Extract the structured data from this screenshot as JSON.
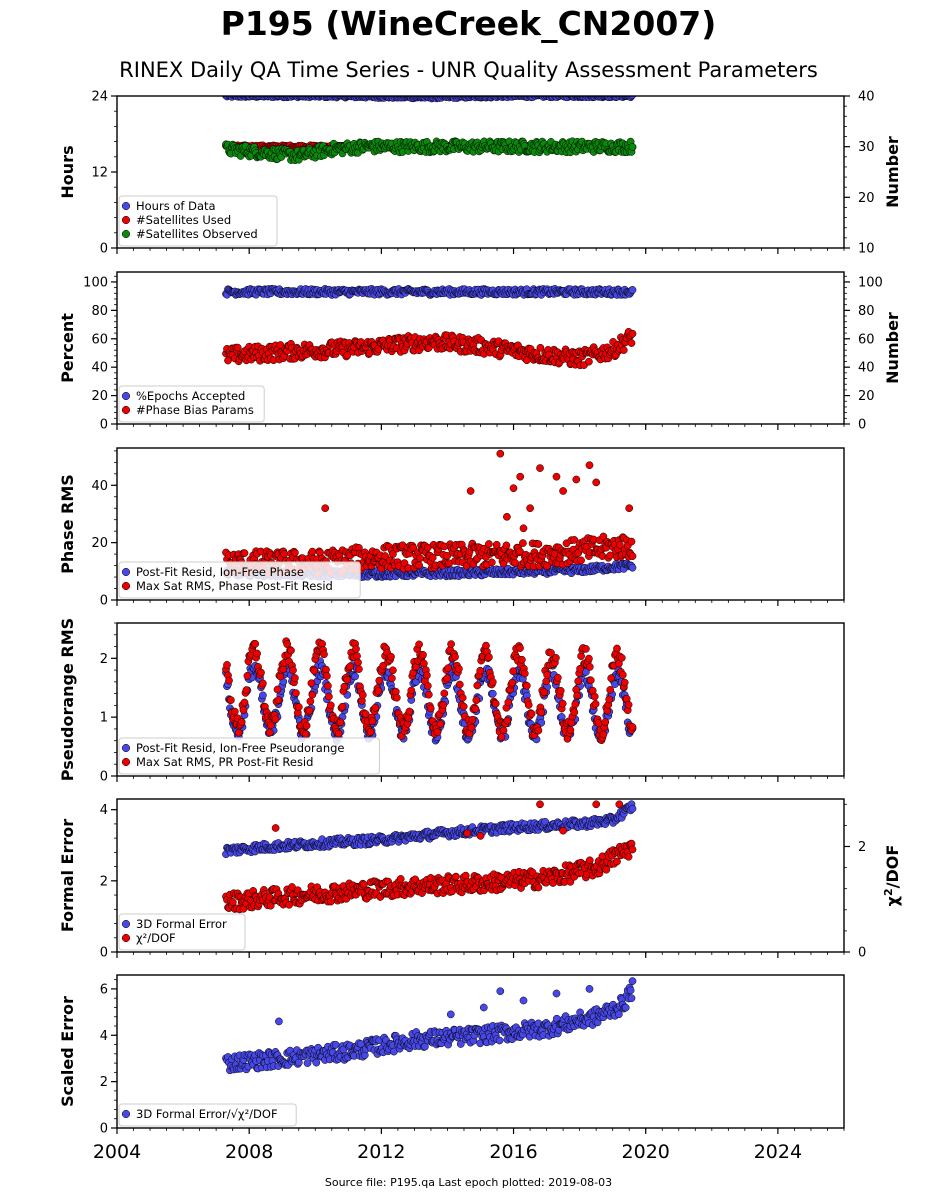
{
  "header": {
    "title": "P195 (WineCreek_CN2007)",
    "subtitle": "RINEX Daily QA Time Series - UNR Quality Assessment Parameters"
  },
  "footer": {
    "text": "Source file: P195.qa Last epoch plotted: 2019-08-03"
  },
  "colors": {
    "blue": "#4848e8",
    "red": "#ee0000",
    "green": "#0a8a0a",
    "outline": "#000000"
  },
  "chart_data": {
    "type": "scatter",
    "x_axis": {
      "range": [
        2004,
        2026
      ],
      "ticks": [
        2004,
        2008,
        2012,
        2016,
        2020,
        2024
      ],
      "tick_labels": [
        "2004",
        "2008",
        "2012",
        "2016",
        "2020",
        "2024"
      ]
    },
    "data_span": {
      "start": 2007.3,
      "end": 2019.6
    },
    "panels": [
      {
        "ylabel": "Hours",
        "ylim": [
          0,
          24
        ],
        "yticks": [
          0,
          12,
          24
        ],
        "ytick_labels": [
          "0",
          "12",
          "24"
        ],
        "right_axis": {
          "ylabel": "Number",
          "ylim": [
            10,
            40
          ],
          "yticks": [
            10,
            20,
            30,
            40
          ],
          "ytick_labels": [
            "10",
            "20",
            "30",
            "40"
          ]
        },
        "legend": {
          "position": "lower-left",
          "entries": [
            "Hours of Data",
            "#Satellites Used",
            "#Satellites Observed"
          ]
        },
        "series": [
          {
            "name": "Hours of Data",
            "color": "blue",
            "axis": "left",
            "points": [
              [
                2007.3,
                24
              ],
              [
                2010,
                24
              ],
              [
                2013.5,
                23.8
              ],
              [
                2016,
                24
              ],
              [
                2019.6,
                24
              ]
            ],
            "spread": 0.15
          },
          {
            "name": "#Satellites Used",
            "color": "red",
            "axis": "right",
            "points": [
              [
                2009.7,
                30
              ]
            ],
            "spread": 0.2
          },
          {
            "name": "#Satellites Observed",
            "color": "green",
            "axis": "right",
            "points": [
              [
                2007.3,
                29.5
              ],
              [
                2008.5,
                28.8
              ],
              [
                2009.5,
                28.2
              ],
              [
                2010.5,
                29.5
              ],
              [
                2011.5,
                30
              ],
              [
                2013,
                30
              ],
              [
                2016,
                30
              ],
              [
                2019.6,
                30
              ]
            ],
            "spread": 0.8
          }
        ]
      },
      {
        "ylabel": "Percent",
        "ylim": [
          0,
          107
        ],
        "yticks": [
          0,
          20,
          40,
          60,
          80,
          100
        ],
        "ytick_labels": [
          "0",
          "20",
          "40",
          "60",
          "80",
          "100"
        ],
        "right_axis": {
          "ylabel": "Number",
          "ylim": [
            0,
            107
          ],
          "yticks": [
            0,
            20,
            40,
            60,
            80,
            100
          ],
          "ytick_labels": [
            "0",
            "20",
            "40",
            "60",
            "80",
            "100"
          ]
        },
        "legend": {
          "position": "lower-left",
          "entries": [
            "%Epochs Accepted",
            "#Phase Bias Params"
          ]
        },
        "series": [
          {
            "name": "%Epochs Accepted",
            "color": "blue",
            "axis": "left",
            "points": [
              [
                2007.3,
                93
              ],
              [
                2010,
                93
              ],
              [
                2013,
                93
              ],
              [
                2016,
                93
              ],
              [
                2019.6,
                93
              ]
            ],
            "spread": 1.5
          },
          {
            "name": "#Phase Bias Params",
            "color": "red",
            "axis": "right",
            "points": [
              [
                2007.3,
                48
              ],
              [
                2008.5,
                50
              ],
              [
                2010,
                52
              ],
              [
                2011,
                53
              ],
              [
                2012,
                55
              ],
              [
                2013.5,
                58
              ],
              [
                2015,
                55
              ],
              [
                2016.5,
                50
              ],
              [
                2018,
                46
              ],
              [
                2019,
                52
              ],
              [
                2019.6,
                62
              ]
            ],
            "spread": 4
          }
        ]
      },
      {
        "ylabel": "Phase RMS",
        "ylim": [
          0,
          53
        ],
        "yticks": [
          0,
          20,
          40
        ],
        "ytick_labels": [
          "0",
          "20",
          "40"
        ],
        "legend": {
          "position": "lower-left",
          "entries": [
            "Post-Fit Resid, Ion-Free Phase",
            "Max Sat RMS, Phase Post-Fit Resid"
          ]
        },
        "series": [
          {
            "name": "Post-Fit Resid, Ion-Free Phase",
            "color": "blue",
            "axis": "left",
            "points": [
              [
                2007.3,
                9.5
              ],
              [
                2011,
                9
              ],
              [
                2015,
                9.5
              ],
              [
                2018,
                10.5
              ],
              [
                2019.6,
                12
              ]
            ],
            "spread": 0.8
          },
          {
            "name": "Max Sat RMS, Phase Post-Fit Resid",
            "color": "red",
            "axis": "left",
            "points": [
              [
                2007.3,
                13
              ],
              [
                2010,
                13
              ],
              [
                2012,
                15
              ],
              [
                2015,
                15.5
              ],
              [
                2017,
                16
              ],
              [
                2019.6,
                19
              ]
            ],
            "spread": 3
          }
        ],
        "outliers": {
          "series": "Max Sat RMS, Phase Post-Fit Resid",
          "points": [
            [
              2015.6,
              51
            ],
            [
              2016.2,
              43
            ],
            [
              2016.8,
              46
            ],
            [
              2017.3,
              43
            ],
            [
              2017.9,
              42
            ],
            [
              2018.3,
              47
            ],
            [
              2018.5,
              41
            ],
            [
              2017.5,
              38
            ],
            [
              2016.5,
              32
            ],
            [
              2014.7,
              38
            ],
            [
              2015.8,
              29
            ],
            [
              2016,
              39
            ],
            [
              2019.5,
              32
            ],
            [
              2010.3,
              32
            ],
            [
              2016.3,
              25
            ]
          ]
        }
      },
      {
        "ylabel": "Pseudorange RMS",
        "ylim": [
          0,
          2.6
        ],
        "yticks": [
          0,
          1,
          2
        ],
        "ytick_labels": [
          "0",
          "1",
          "2"
        ],
        "legend": {
          "position": "lower-left",
          "entries": [
            "Post-Fit Resid, Ion-Free Pseudorange",
            "Max Sat RMS, PR Post-Fit Resid"
          ]
        },
        "series": [
          {
            "name": "Post-Fit Resid, Ion-Free Pseudorange",
            "color": "blue",
            "axis": "left",
            "points": [
              [
                2007.3,
                1.3
              ],
              [
                2019.6,
                1.2
              ]
            ],
            "spread": 0.1,
            "seasonal_amplitude": 0.55
          },
          {
            "name": "Max Sat RMS, PR Post-Fit Resid",
            "color": "red",
            "axis": "left",
            "points": [
              [
                2007.3,
                1.5
              ],
              [
                2019.6,
                1.4
              ]
            ],
            "spread": 0.12,
            "seasonal_amplitude": 0.65
          }
        ]
      },
      {
        "ylabel": "Formal Error",
        "ylim": [
          0,
          4.3
        ],
        "yticks": [
          0,
          2,
          4
        ],
        "ytick_labels": [
          "0",
          "2",
          "4"
        ],
        "right_axis": {
          "ylabel": "χ²/DOF",
          "ylim": [
            0,
            2.9
          ],
          "yticks": [
            0,
            2
          ],
          "ytick_labels": [
            "0",
            "2"
          ]
        },
        "legend": {
          "position": "lower-left",
          "entries": [
            "3D Formal Error",
            "χ²/DOF"
          ]
        },
        "series": [
          {
            "name": "3D Formal Error",
            "color": "blue",
            "axis": "left",
            "points": [
              [
                2007.3,
                2.85
              ],
              [
                2008.5,
                2.95
              ],
              [
                2010,
                3.05
              ],
              [
                2012,
                3.15
              ],
              [
                2014,
                3.35
              ],
              [
                2016,
                3.5
              ],
              [
                2018,
                3.6
              ],
              [
                2019,
                3.7
              ],
              [
                2019.6,
                4.1
              ]
            ],
            "spread": 0.08
          },
          {
            "name": "χ²/DOF",
            "color": "red",
            "axis": "right",
            "points": [
              [
                2007.3,
                0.95
              ],
              [
                2009,
                1.05
              ],
              [
                2011,
                1.15
              ],
              [
                2013,
                1.25
              ],
              [
                2015,
                1.3
              ],
              [
                2017,
                1.4
              ],
              [
                2018.5,
                1.6
              ],
              [
                2019.6,
                2.0
              ]
            ],
            "spread": 0.12
          }
        ],
        "outliers": {
          "series": "χ²/DOF",
          "points": [
            [
              2016.8,
              2.8
            ],
            [
              2018.5,
              2.8
            ],
            [
              2019.2,
              2.8
            ],
            [
              2008.8,
              2.35
            ],
            [
              2014.6,
              2.25
            ],
            [
              2017.5,
              2.3
            ],
            [
              2015,
              2.2
            ]
          ]
        }
      },
      {
        "ylabel": "Scaled Error",
        "ylim": [
          0,
          6.6
        ],
        "yticks": [
          0,
          2,
          4,
          6
        ],
        "ytick_labels": [
          "0",
          "2",
          "4",
          "6"
        ],
        "legend": {
          "position": "lower-left",
          "entries": [
            "3D Formal Error/√χ²/DOF"
          ]
        },
        "series": [
          {
            "name": "3D Formal Error/√χ²/DOF",
            "color": "blue",
            "axis": "left",
            "points": [
              [
                2007.3,
                2.8
              ],
              [
                2009,
                3.0
              ],
              [
                2011,
                3.3
              ],
              [
                2013,
                3.8
              ],
              [
                2015,
                4.0
              ],
              [
                2017,
                4.3
              ],
              [
                2018.5,
                4.8
              ],
              [
                2019.3,
                5.3
              ],
              [
                2019.6,
                6.0
              ]
            ],
            "spread": 0.25
          }
        ],
        "outliers": {
          "series": "3D Formal Error/√χ²/DOF",
          "points": [
            [
              2008.9,
              4.6
            ],
            [
              2015.6,
              5.9
            ],
            [
              2017.3,
              5.8
            ],
            [
              2014.1,
              4.9
            ],
            [
              2015.1,
              5.2
            ],
            [
              2016.3,
              5.5
            ],
            [
              2018.3,
              6.0
            ]
          ]
        }
      }
    ]
  }
}
